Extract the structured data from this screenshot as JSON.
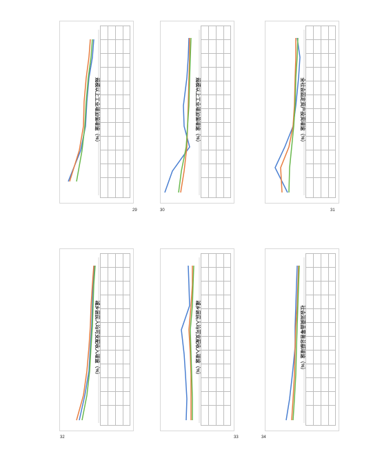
{
  "pages": {
    "top": [
      "29",
      "30",
      "31"
    ],
    "bottom": [
      "32",
      "33",
      "34"
    ]
  },
  "panels": [
    {
      "title": "规模以上工业增加值增速（%）"
    },
    {
      "title": "规模以上工业增加值增速（%）"
    },
    {
      "title": "全社会固定资产投资增速（%）"
    },
    {
      "title": "城乡居民人均可支配收入增速（%）"
    },
    {
      "title": "城乡居民人均可支配收入增速（%）"
    },
    {
      "title": "社会消费品零售总额增速（%）"
    }
  ],
  "colors": {
    "series_a": "#4a7fd1",
    "series_b": "#e77d3f",
    "series_c": "#69b84d",
    "grid": "#d9d9d9"
  }
}
